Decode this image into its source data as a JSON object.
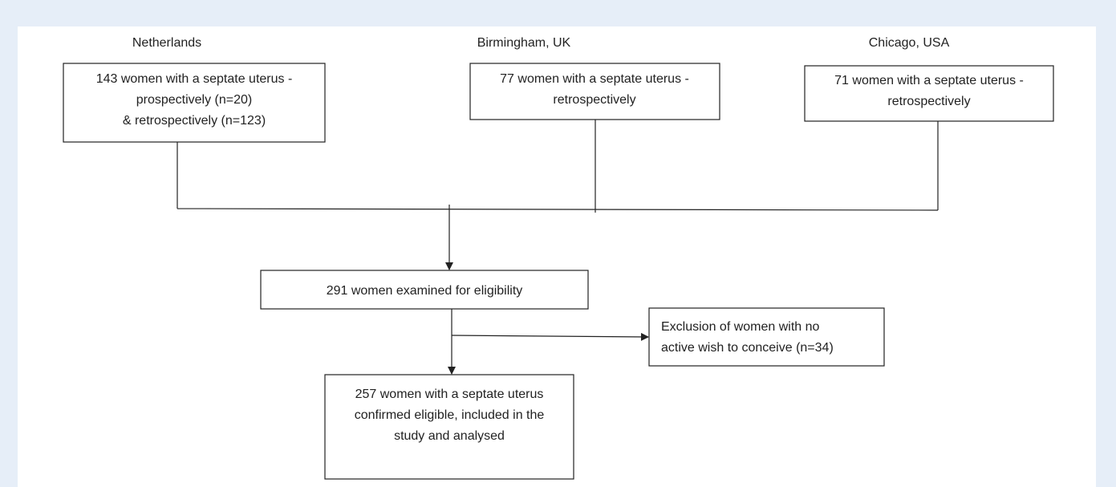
{
  "headers": [
    "Netherlands",
    "Birmingham, UK",
    "Chicago, USA"
  ],
  "nodes": [
    {
      "lines": [
        "143 women with a septate uterus -",
        "prospectively (n=20)",
        "& retrospectively (n=123)"
      ]
    },
    {
      "lines": [
        "77 women with a septate uterus -",
        "retrospectively"
      ]
    },
    {
      "lines": [
        "71 women with a septate uterus -",
        "retrospectively"
      ]
    },
    {
      "lines": [
        "291 women examined for eligibility"
      ]
    },
    {
      "lines": [
        "Exclusion of women with no",
        "active wish to conceive (n=34)"
      ]
    },
    {
      "lines": [
        "257 women with a septate uterus",
        "confirmed eligible, included in the",
        "study and analysed"
      ]
    }
  ]
}
